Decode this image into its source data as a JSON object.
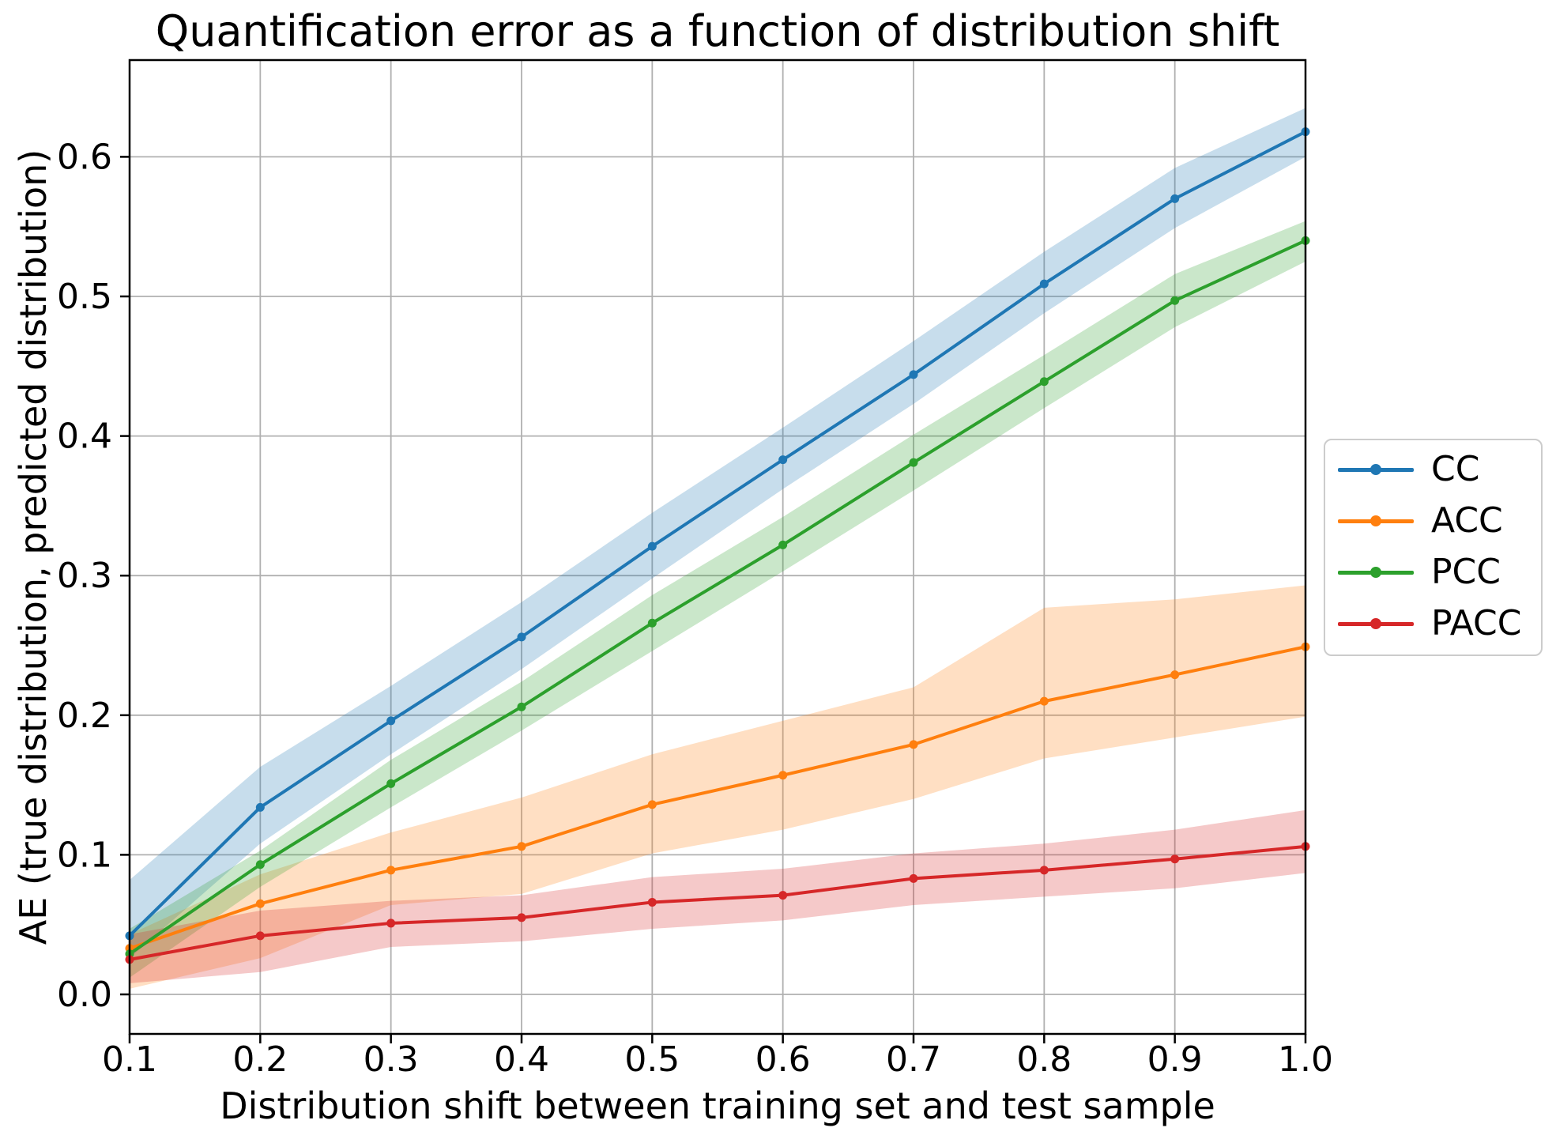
{
  "title": "Quantification error as a function of distribution shift",
  "x_axis": {
    "label": "Distribution shift between training set and test sample",
    "tick_labels": [
      "0.1",
      "0.2",
      "0.3",
      "0.4",
      "0.5",
      "0.6",
      "0.7",
      "0.8",
      "0.9",
      "1.0"
    ],
    "tick_values": [
      0.1,
      0.2,
      0.3,
      0.4,
      0.5,
      0.6,
      0.7,
      0.8,
      0.9,
      1.0
    ]
  },
  "y_axis": {
    "label": "AE (true distribution, predicted distribution)",
    "tick_labels": [
      "0.0",
      "0.1",
      "0.2",
      "0.3",
      "0.4",
      "0.5",
      "0.6"
    ],
    "tick_values": [
      0.0,
      0.1,
      0.2,
      0.3,
      0.4,
      0.5,
      0.6
    ]
  },
  "legend": {
    "position": "center right, outside axes"
  },
  "style_colors": {
    "grid": "#b0b0b0",
    "spine": "#000000",
    "text": "#000000",
    "legend_border": "#cccccc"
  },
  "chart_data": {
    "type": "line",
    "x": [
      0.1,
      0.2,
      0.3,
      0.4,
      0.5,
      0.6,
      0.7,
      0.8,
      0.9,
      1.0
    ],
    "xlim": [
      0.1,
      1.0
    ],
    "ylim": [
      -0.028,
      0.669
    ],
    "grid": true,
    "marker": "circle",
    "band_alpha": 0.25,
    "series": [
      {
        "name": "CC",
        "color": "#1f77b4",
        "values": [
          0.042,
          0.134,
          0.196,
          0.256,
          0.321,
          0.383,
          0.444,
          0.509,
          0.57,
          0.618
        ],
        "band_lo": [
          0.026,
          0.108,
          0.172,
          0.233,
          0.298,
          0.362,
          0.423,
          0.488,
          0.549,
          0.6
        ],
        "band_hi": [
          0.082,
          0.163,
          0.221,
          0.281,
          0.345,
          0.406,
          0.468,
          0.532,
          0.592,
          0.635
        ]
      },
      {
        "name": "ACC",
        "color": "#ff7f0e",
        "values": [
          0.033,
          0.065,
          0.089,
          0.106,
          0.136,
          0.157,
          0.179,
          0.21,
          0.229,
          0.249
        ],
        "band_lo": [
          0.004,
          0.026,
          0.064,
          0.072,
          0.101,
          0.118,
          0.14,
          0.169,
          0.184,
          0.199
        ],
        "band_hi": [
          0.043,
          0.086,
          0.116,
          0.141,
          0.172,
          0.196,
          0.22,
          0.277,
          0.283,
          0.293
        ]
      },
      {
        "name": "PCC",
        "color": "#2ca02c",
        "values": [
          0.029,
          0.093,
          0.151,
          0.206,
          0.266,
          0.322,
          0.381,
          0.439,
          0.497,
          0.54
        ],
        "band_lo": [
          0.012,
          0.077,
          0.134,
          0.189,
          0.246,
          0.303,
          0.361,
          0.42,
          0.478,
          0.525
        ],
        "band_hi": [
          0.047,
          0.103,
          0.168,
          0.224,
          0.286,
          0.342,
          0.401,
          0.458,
          0.516,
          0.554
        ]
      },
      {
        "name": "PACC",
        "color": "#d62728",
        "values": [
          0.025,
          0.042,
          0.051,
          0.055,
          0.066,
          0.071,
          0.083,
          0.089,
          0.097,
          0.106
        ],
        "band_lo": [
          0.008,
          0.016,
          0.034,
          0.038,
          0.047,
          0.053,
          0.064,
          0.07,
          0.076,
          0.087
        ],
        "band_hi": [
          0.043,
          0.06,
          0.067,
          0.071,
          0.084,
          0.09,
          0.101,
          0.108,
          0.118,
          0.132
        ]
      }
    ]
  }
}
